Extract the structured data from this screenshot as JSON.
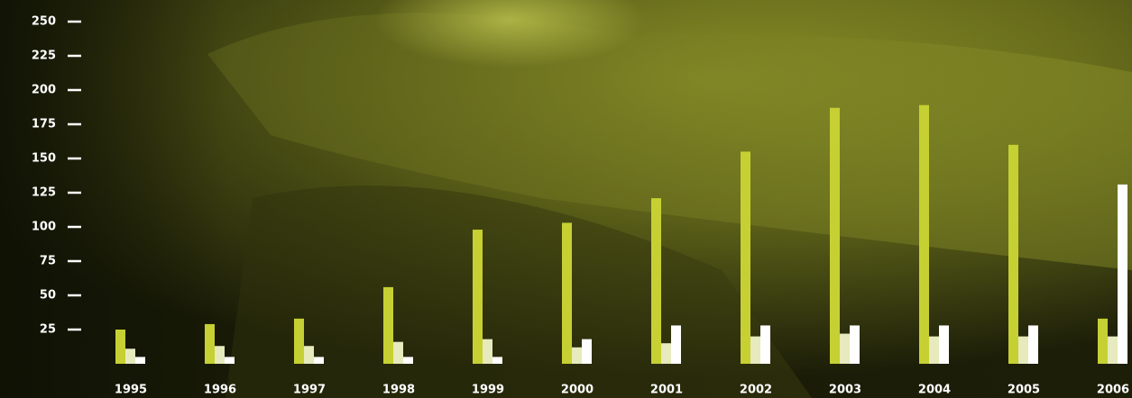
{
  "chart_data": {
    "type": "bar",
    "categories": [
      "1995",
      "1996",
      "1997",
      "1998",
      "1999",
      "2000",
      "2001",
      "2002",
      "2003",
      "2004",
      "2005",
      "2006"
    ],
    "series": [
      {
        "color": "#c6d033",
        "values": [
          25,
          29,
          33,
          56,
          98,
          103,
          121,
          155,
          187,
          189,
          160,
          33
        ]
      },
      {
        "color": "#e6eabd",
        "values": [
          11,
          13,
          13,
          16,
          18,
          12,
          15,
          20,
          22,
          20,
          20,
          20
        ]
      },
      {
        "color": "#ffffff",
        "values": [
          5,
          5,
          5,
          5,
          5,
          18,
          28,
          28,
          28,
          28,
          28,
          131
        ]
      }
    ],
    "ylim": [
      0,
      250
    ],
    "yticks": [
      25,
      50,
      75,
      100,
      125,
      150,
      175,
      200,
      225,
      250
    ]
  }
}
